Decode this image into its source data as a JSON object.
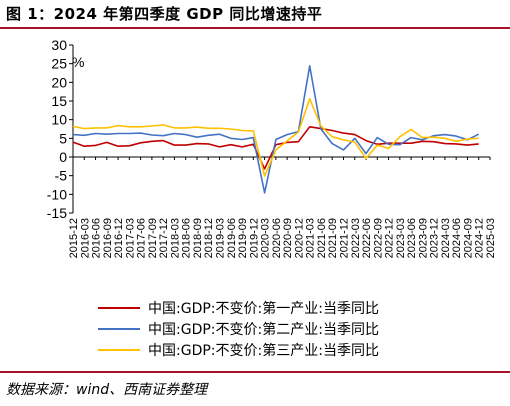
{
  "title": "图 1：2024 年第四季度 GDP 同比增速持平",
  "source": "数据来源：wind、西南证券整理",
  "chart_data": {
    "type": "line",
    "unit_label": "%",
    "ylim": [
      -15,
      30
    ],
    "yticks": [
      -15,
      -10,
      -5,
      0,
      5,
      10,
      15,
      20,
      25,
      30
    ],
    "x_tick_labels": [
      "2015-12",
      "2016-03",
      "2016-06",
      "2016-09",
      "2016-12",
      "2017-03",
      "2017-06",
      "2017-09",
      "2017-12",
      "2018-03",
      "2018-06",
      "2018-09",
      "2018-12",
      "2019-03",
      "2019-06",
      "2019-09",
      "2019-12",
      "2020-03",
      "2020-06",
      "2020-09",
      "2020-12",
      "2021-03",
      "2021-06",
      "2021-09",
      "2021-12",
      "2022-03",
      "2022-06",
      "2022-09",
      "2022-12",
      "2023-03",
      "2023-06",
      "2023-09",
      "2023-12",
      "2024-03",
      "2024-06",
      "2024-09",
      "2024-12",
      "2025-03"
    ],
    "x": [
      "2015-12",
      "2016-03",
      "2016-06",
      "2016-09",
      "2016-12",
      "2017-03",
      "2017-06",
      "2017-09",
      "2017-12",
      "2018-03",
      "2018-06",
      "2018-09",
      "2018-12",
      "2019-03",
      "2019-06",
      "2019-09",
      "2019-12",
      "2020-03",
      "2020-06",
      "2020-09",
      "2020-12",
      "2021-03",
      "2021-06",
      "2021-09",
      "2021-12",
      "2022-03",
      "2022-06",
      "2022-09",
      "2022-12",
      "2023-03",
      "2023-06",
      "2023-09",
      "2023-12",
      "2024-03",
      "2024-06",
      "2024-09",
      "2024-12"
    ],
    "series": [
      {
        "name": "中国:GDP:不变价:第一产业:当季同比",
        "color": "#c00000",
        "values": [
          4.0,
          2.9,
          3.1,
          3.9,
          2.9,
          3.0,
          3.8,
          4.2,
          4.4,
          3.2,
          3.2,
          3.6,
          3.5,
          2.7,
          3.3,
          2.7,
          3.4,
          -3.2,
          3.3,
          3.9,
          4.1,
          8.1,
          7.6,
          7.1,
          6.4,
          6.0,
          4.4,
          3.4,
          3.7,
          3.7,
          3.7,
          4.2,
          4.1,
          3.6,
          3.5,
          3.2,
          3.5
        ]
      },
      {
        "name": "中国:GDP:不变价:第二产业:当季同比",
        "color": "#4472c4",
        "values": [
          6.0,
          5.8,
          6.3,
          6.1,
          6.3,
          6.3,
          6.4,
          5.9,
          5.7,
          6.3,
          6.0,
          5.3,
          5.8,
          6.1,
          5.0,
          4.7,
          5.2,
          -9.6,
          4.7,
          6.0,
          6.8,
          24.4,
          7.5,
          3.6,
          1.9,
          5.0,
          0.9,
          5.2,
          3.4,
          3.3,
          5.2,
          4.6,
          5.7,
          6.0,
          5.6,
          4.6,
          6.1
        ]
      },
      {
        "name": "中国:GDP:不变价:第三产业:当季同比",
        "color": "#ffc000",
        "values": [
          8.2,
          7.6,
          7.8,
          7.8,
          8.4,
          8.1,
          8.1,
          8.3,
          8.6,
          7.8,
          7.8,
          8.0,
          7.7,
          7.7,
          7.5,
          7.1,
          7.0,
          -5.1,
          1.9,
          4.3,
          6.7,
          15.6,
          8.3,
          5.4,
          4.6,
          4.0,
          -0.4,
          3.2,
          2.3,
          5.4,
          7.4,
          5.2,
          5.3,
          5.0,
          4.2,
          4.8,
          5.0
        ]
      }
    ]
  }
}
